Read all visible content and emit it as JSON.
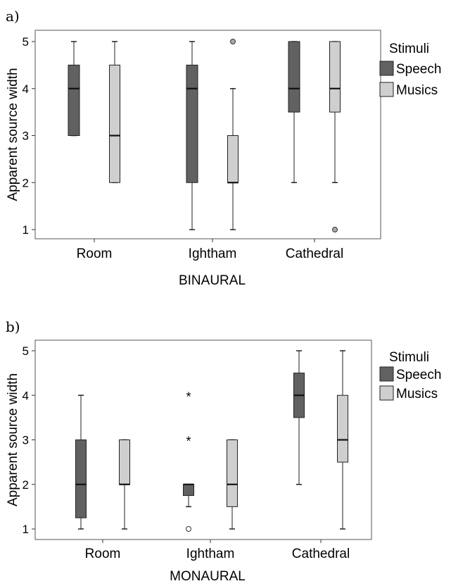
{
  "chart_data": [
    {
      "type": "box",
      "panel_label": "a)",
      "xlabel": "BINAURAL",
      "ylabel": "Apparent source width",
      "ylim": [
        0.8,
        5.2
      ],
      "yticks": [
        "1",
        "2",
        "3",
        "4",
        "5"
      ],
      "categories": [
        "Room",
        "Ightham",
        "Cathedral"
      ],
      "legend_title": "Stimuli",
      "legend_position": "right",
      "series": [
        {
          "name": "Speech",
          "color": "#616161",
          "boxes": [
            {
              "whisker_low": 3,
              "q1": 3,
              "median": 4,
              "q3": 4.5,
              "whisker_high": 5,
              "outliers": []
            },
            {
              "whisker_low": 1,
              "q1": 2,
              "median": 4,
              "q3": 4.5,
              "whisker_high": 5,
              "outliers": []
            },
            {
              "whisker_low": 2,
              "q1": 3.5,
              "median": 4,
              "q3": 5,
              "whisker_high": 5,
              "outliers": []
            }
          ]
        },
        {
          "name": "Musics",
          "color": "#cfcfcf",
          "boxes": [
            {
              "whisker_low": 2,
              "q1": 2,
              "median": 3,
              "q3": 4.5,
              "whisker_high": 5,
              "outliers": []
            },
            {
              "whisker_low": 1,
              "q1": 2,
              "median": 2,
              "q3": 3,
              "whisker_high": 4,
              "outliers": [
                5
              ]
            },
            {
              "whisker_low": 2,
              "q1": 3.5,
              "median": 4,
              "q3": 5,
              "whisker_high": 5,
              "outliers": [
                1
              ]
            }
          ]
        }
      ]
    },
    {
      "type": "box",
      "panel_label": "b)",
      "xlabel": "MONAURAL",
      "ylabel": "Apparent source width",
      "ylim": [
        0.8,
        5.2
      ],
      "yticks": [
        "1",
        "2",
        "3",
        "4",
        "5"
      ],
      "categories": [
        "Room",
        "Ightham",
        "Cathedral"
      ],
      "legend_title": "Stimuli",
      "legend_position": "right",
      "series": [
        {
          "name": "Speech",
          "color": "#616161",
          "boxes": [
            {
              "whisker_low": 1,
              "q1": 1.25,
              "median": 2,
              "q3": 3,
              "whisker_high": 4,
              "outliers": []
            },
            {
              "whisker_low": 1.5,
              "q1": 1.75,
              "median": 2,
              "q3": 2,
              "whisker_high": 2,
              "outliers": [
                1
              ],
              "extremes": [
                3,
                4
              ]
            },
            {
              "whisker_low": 2,
              "q1": 3.5,
              "median": 4,
              "q3": 4.5,
              "whisker_high": 5,
              "outliers": []
            }
          ]
        },
        {
          "name": "Musics",
          "color": "#cfcfcf",
          "boxes": [
            {
              "whisker_low": 1,
              "q1": 2,
              "median": 2,
              "q3": 3,
              "whisker_high": 3,
              "outliers": []
            },
            {
              "whisker_low": 1,
              "q1": 1.5,
              "median": 2,
              "q3": 3,
              "whisker_high": 3,
              "outliers": []
            },
            {
              "whisker_low": 1,
              "q1": 2.5,
              "median": 3,
              "q3": 4,
              "whisker_high": 5,
              "outliers": []
            }
          ]
        }
      ]
    }
  ]
}
